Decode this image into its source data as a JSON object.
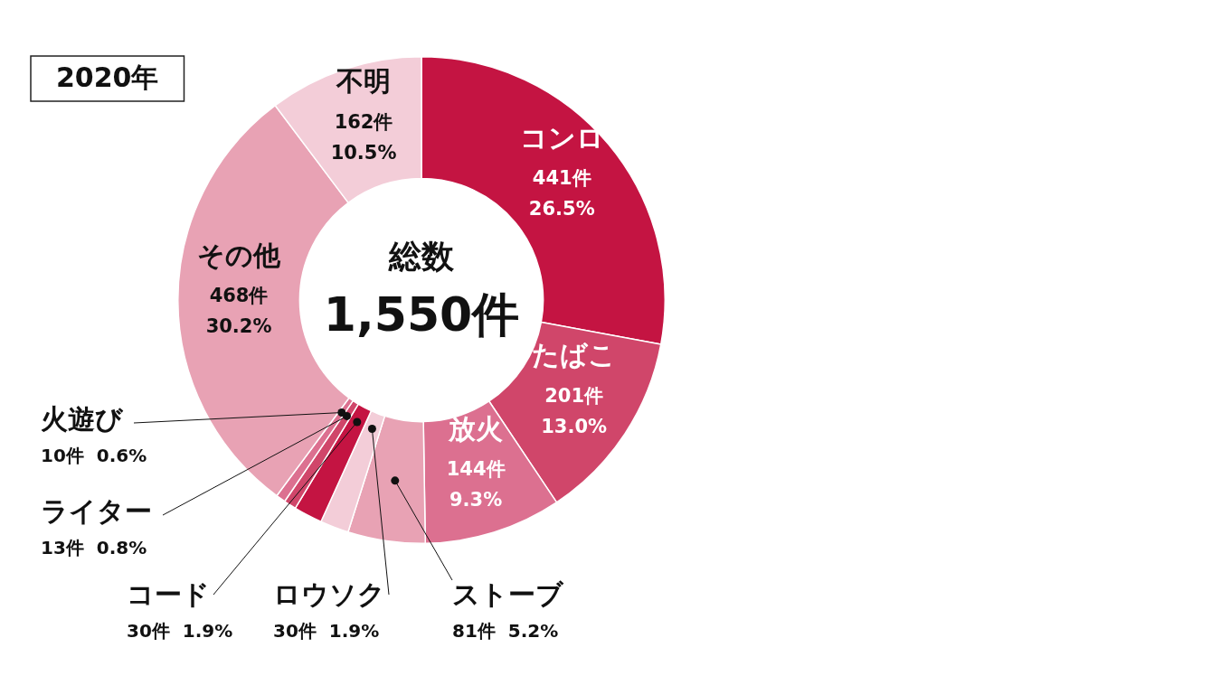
{
  "chart_data": {
    "type": "donut",
    "title": "2020年",
    "categories": [
      "コンロ",
      "たばこ",
      "放火",
      "ストーブ",
      "ロウソク",
      "コード",
      "ライター",
      "火遊び",
      "その他",
      "不明"
    ],
    "values": [
      441,
      201,
      144,
      81,
      30,
      30,
      13,
      10,
      468,
      162
    ],
    "colors": [
      "#c41442",
      "#d0466a",
      "#dc7090",
      "#e8a2b4",
      "#f3cdd8",
      "#c41442",
      "#d0466a",
      "#dc7090",
      "#e8a2b4",
      "#f3cdd8"
    ],
    "value_labels": [
      "441件 26.5%",
      "201件 13.0%",
      "144件 9.3%",
      "81件 5.2%",
      "30件 1.9%",
      "30件 1.9%",
      "13件 0.8%",
      "10件 0.6%",
      "468件 30.2%",
      "162件 10.5%"
    ],
    "annotations": [
      "総数",
      "1,550件"
    ],
    "legend": false
  }
}
